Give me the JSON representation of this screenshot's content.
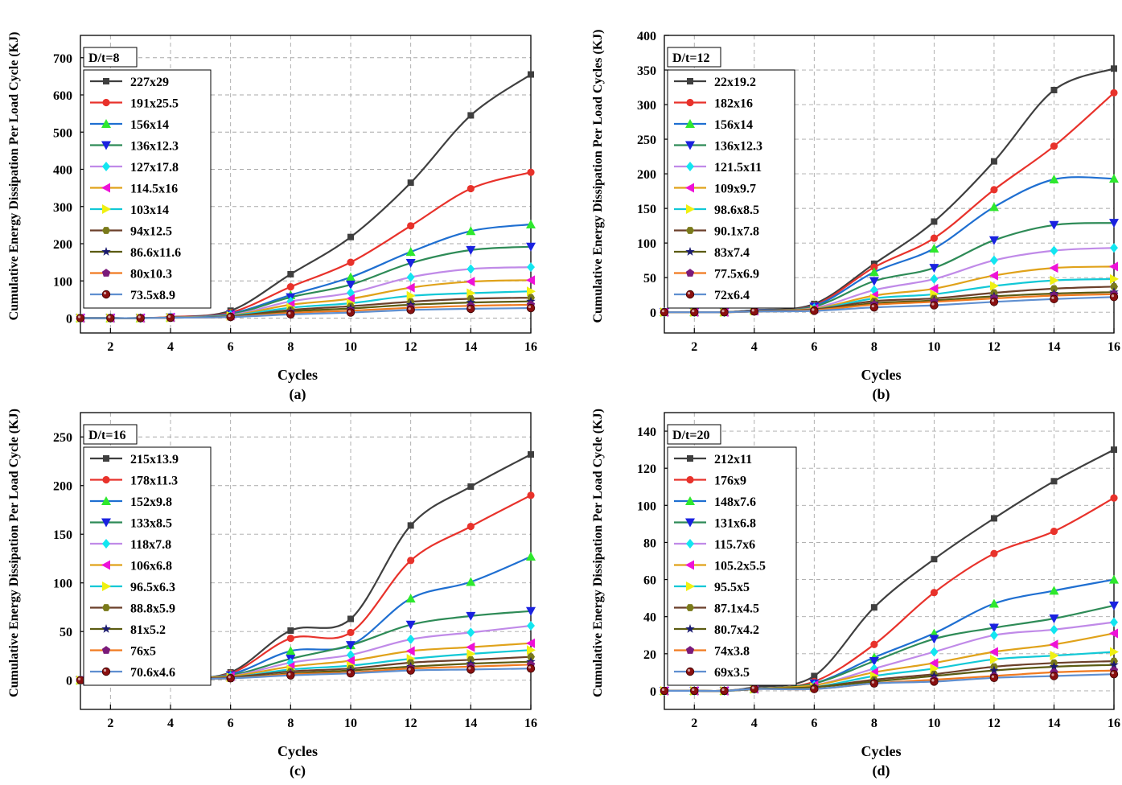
{
  "chart_data": [
    {
      "type": "line",
      "panel": "(a)",
      "title": "D/t=8",
      "xlabel": "Cycles",
      "ylabel": "Cumulative Energy Dissipation Per Load Cycle (KJ)",
      "xlim": [
        1,
        16
      ],
      "ylim": [
        -40,
        760
      ],
      "xticks": [
        2,
        4,
        6,
        8,
        10,
        12,
        14,
        16
      ],
      "yticks": [
        0,
        100,
        200,
        300,
        400,
        500,
        600,
        700
      ],
      "x": [
        1,
        2,
        3,
        4,
        6,
        8,
        10,
        12,
        14,
        16
      ],
      "series": [
        {
          "name": "227x29",
          "values": [
            0,
            0,
            0,
            3,
            20,
            118,
            218,
            364,
            545,
            655
          ]
        },
        {
          "name": "191x25.5",
          "values": [
            0,
            0,
            0,
            3,
            15,
            84,
            150,
            248,
            348,
            392
          ]
        },
        {
          "name": "156x14",
          "values": [
            0,
            0,
            0,
            2,
            12,
            62,
            110,
            178,
            234,
            252
          ]
        },
        {
          "name": "136x12.3",
          "values": [
            0,
            0,
            0,
            2,
            10,
            56,
            90,
            148,
            183,
            192
          ]
        },
        {
          "name": "127x17.8",
          "values": [
            0,
            0,
            0,
            2,
            8,
            45,
            68,
            110,
            132,
            137
          ]
        },
        {
          "name": "114.5x16",
          "values": [
            0,
            0,
            0,
            2,
            7,
            36,
            52,
            82,
            98,
            102
          ]
        },
        {
          "name": "103x14",
          "values": [
            0,
            0,
            0,
            1,
            6,
            28,
            40,
            60,
            67,
            72
          ]
        },
        {
          "name": "94x12.5",
          "values": [
            0,
            0,
            0,
            1,
            5,
            22,
            32,
            44,
            52,
            55
          ]
        },
        {
          "name": "86.6x11.6",
          "values": [
            0,
            0,
            0,
            1,
            4,
            18,
            26,
            36,
            42,
            45
          ]
        },
        {
          "name": "80x10.3",
          "values": [
            0,
            0,
            0,
            1,
            3,
            14,
            20,
            28,
            33,
            36
          ]
        },
        {
          "name": "73.5x8.9",
          "values": [
            0,
            0,
            0,
            1,
            3,
            10,
            15,
            22,
            25,
            27
          ]
        }
      ]
    },
    {
      "type": "line",
      "panel": "(b)",
      "title": "D/t=12",
      "xlabel": "Cycles",
      "ylabel": "Cumulative Energy Dissipation Per Load Cycles (KJ)",
      "xlim": [
        1,
        16
      ],
      "ylim": [
        -30,
        400
      ],
      "xticks": [
        2,
        4,
        6,
        8,
        10,
        12,
        14,
        16
      ],
      "yticks": [
        0,
        50,
        100,
        150,
        200,
        250,
        300,
        350,
        400
      ],
      "x": [
        1,
        2,
        3,
        4,
        6,
        8,
        10,
        12,
        14,
        16
      ],
      "series": [
        {
          "name": "22x19.2",
          "values": [
            0,
            0,
            0,
            3,
            12,
            70,
            131,
            218,
            321,
            352
          ]
        },
        {
          "name": "182x16",
          "values": [
            0,
            0,
            0,
            3,
            10,
            65,
            107,
            177,
            240,
            317
          ]
        },
        {
          "name": "156x14",
          "values": [
            0,
            0,
            0,
            3,
            9,
            58,
            92,
            152,
            192,
            193
          ]
        },
        {
          "name": "136x12.3",
          "values": [
            0,
            0,
            0,
            2,
            8,
            45,
            64,
            104,
            126,
            129
          ]
        },
        {
          "name": "121.5x11",
          "values": [
            0,
            0,
            0,
            2,
            6,
            32,
            48,
            75,
            89,
            93
          ]
        },
        {
          "name": "109x9.7",
          "values": [
            0,
            0,
            0,
            2,
            5,
            24,
            34,
            53,
            64,
            66
          ]
        },
        {
          "name": "98.6x8.5",
          "values": [
            0,
            0,
            0,
            2,
            4,
            20,
            26,
            38,
            46,
            48
          ]
        },
        {
          "name": "90.1x7.8",
          "values": [
            0,
            0,
            0,
            2,
            4,
            16,
            20,
            28,
            34,
            37
          ]
        },
        {
          "name": "83x7.4",
          "values": [
            0,
            0,
            0,
            1,
            3,
            13,
            17,
            23,
            27,
            29
          ]
        },
        {
          "name": "77.5x6.9",
          "values": [
            0,
            0,
            0,
            1,
            3,
            11,
            15,
            20,
            24,
            26
          ]
        },
        {
          "name": "72x6.4",
          "values": [
            0,
            0,
            0,
            1,
            2,
            7,
            10,
            15,
            19,
            22
          ]
        }
      ]
    },
    {
      "type": "line",
      "panel": "(c)",
      "title": "D/t=16",
      "xlabel": "Cycles",
      "ylabel": "Cumulative Energy Dissipation Per Load Cycle (KJ)",
      "xlim": [
        1,
        16
      ],
      "ylim": [
        -30,
        275
      ],
      "xticks": [
        2,
        4,
        6,
        8,
        10,
        12,
        14,
        16
      ],
      "yticks": [
        0,
        50,
        100,
        150,
        200,
        250
      ],
      "x": [
        1,
        2,
        3,
        4,
        6,
        8,
        10,
        12,
        14,
        16
      ],
      "series": [
        {
          "name": "215x13.9",
          "values": [
            0,
            0,
            0,
            2,
            8,
            51,
            63,
            159,
            199,
            232
          ]
        },
        {
          "name": "178x11.3",
          "values": [
            0,
            0,
            0,
            2,
            7,
            43,
            49,
            123,
            158,
            190
          ]
        },
        {
          "name": "152x9.8",
          "values": [
            0,
            0,
            0,
            2,
            6,
            30,
            36,
            84,
            101,
            127
          ]
        },
        {
          "name": "133x8.5",
          "values": [
            0,
            0,
            0,
            2,
            5,
            22,
            36,
            57,
            66,
            71
          ]
        },
        {
          "name": "118x7.8",
          "values": [
            0,
            0,
            0,
            2,
            4,
            18,
            26,
            42,
            49,
            56
          ]
        },
        {
          "name": "106x6.8",
          "values": [
            0,
            0,
            0,
            2,
            4,
            14,
            20,
            30,
            34,
            38
          ]
        },
        {
          "name": "96.5x6.3",
          "values": [
            0,
            0,
            0,
            1,
            3,
            11,
            15,
            22,
            27,
            31
          ]
        },
        {
          "name": "88.8x5.9",
          "values": [
            0,
            0,
            0,
            1,
            3,
            9,
            12,
            18,
            21,
            24
          ]
        },
        {
          "name": "81x5.2",
          "values": [
            0,
            0,
            0,
            1,
            2,
            7,
            10,
            14,
            17,
            19
          ]
        },
        {
          "name": "76x5",
          "values": [
            0,
            0,
            0,
            1,
            2,
            6,
            8,
            12,
            14,
            16
          ]
        },
        {
          "name": "70.6x4.6",
          "values": [
            0,
            0,
            0,
            1,
            2,
            5,
            7,
            10,
            11,
            12
          ]
        }
      ]
    },
    {
      "type": "line",
      "panel": "(d)",
      "title": "D/t=20",
      "xlabel": "Cycles",
      "ylabel": "Cumulative Energy Dissipation Per Load Cycle (KJ)",
      "xlim": [
        1,
        16
      ],
      "ylim": [
        -10,
        150
      ],
      "xticks": [
        2,
        4,
        6,
        8,
        10,
        12,
        14,
        16
      ],
      "yticks": [
        0,
        20,
        40,
        60,
        80,
        100,
        120,
        140
      ],
      "x": [
        1,
        2,
        3,
        4,
        6,
        8,
        10,
        12,
        14,
        16
      ],
      "series": [
        {
          "name": "212x11",
          "values": [
            0,
            0,
            0,
            2,
            8,
            45,
            71,
            93,
            113,
            130
          ]
        },
        {
          "name": "176x9",
          "values": [
            0,
            0,
            0,
            1,
            5,
            25,
            53,
            74,
            86,
            104
          ]
        },
        {
          "name": "148x7.6",
          "values": [
            0,
            0,
            0,
            1,
            4,
            18,
            31,
            47,
            54,
            60
          ]
        },
        {
          "name": "131x6.8",
          "values": [
            0,
            0,
            0,
            1,
            4,
            16,
            28,
            34,
            39,
            46
          ]
        },
        {
          "name": "115.7x6",
          "values": [
            0,
            0,
            0,
            1,
            3,
            12,
            21,
            30,
            33,
            37
          ]
        },
        {
          "name": "105.2x5.5",
          "values": [
            0,
            0,
            0,
            1,
            3,
            10,
            15,
            21,
            25,
            31
          ]
        },
        {
          "name": "95.5x5",
          "values": [
            0,
            0,
            0,
            1,
            2,
            8,
            12,
            17,
            19,
            21
          ]
        },
        {
          "name": "87.1x4.5",
          "values": [
            0,
            0,
            0,
            1,
            2,
            6,
            9,
            13,
            15,
            16
          ]
        },
        {
          "name": "80.7x4.2",
          "values": [
            0,
            0,
            0,
            1,
            2,
            5,
            8,
            11,
            13,
            14
          ]
        },
        {
          "name": "74x3.8",
          "values": [
            0,
            0,
            0,
            1,
            1,
            4,
            6,
            8,
            10,
            11
          ]
        },
        {
          "name": "69x3.5",
          "values": [
            0,
            0,
            0,
            1,
            1,
            4,
            5,
            7,
            8,
            9
          ]
        }
      ]
    }
  ],
  "series_styles": [
    {
      "color": "#3f3f3f",
      "marker": "square"
    },
    {
      "color": "#e8322b",
      "marker": "circle"
    },
    {
      "color": "#1f6fd1",
      "marker": "triangle-up",
      "marker_color": "#2ee82e"
    },
    {
      "color": "#2e8b57",
      "marker": "triangle-down",
      "marker_color": "#1a22e0"
    },
    {
      "color": "#c08ae8",
      "marker": "diamond",
      "marker_color": "#12e6f0"
    },
    {
      "color": "#e0a21a",
      "marker": "triangle-left",
      "marker_color": "#ee12d8"
    },
    {
      "color": "#12c8d6",
      "marker": "triangle-right",
      "marker_color": "#f0f012"
    },
    {
      "color": "#6b3f2a",
      "marker": "hexagon",
      "marker_color": "#7a7a1a"
    },
    {
      "color": "#5b5b12",
      "marker": "star",
      "marker_color": "#1a1a6e"
    },
    {
      "color": "#f07a20",
      "marker": "pentagon",
      "marker_color": "#7a1a7a"
    },
    {
      "color": "#5f8fd0",
      "marker": "sphere",
      "marker_color": "#8a1010"
    }
  ]
}
